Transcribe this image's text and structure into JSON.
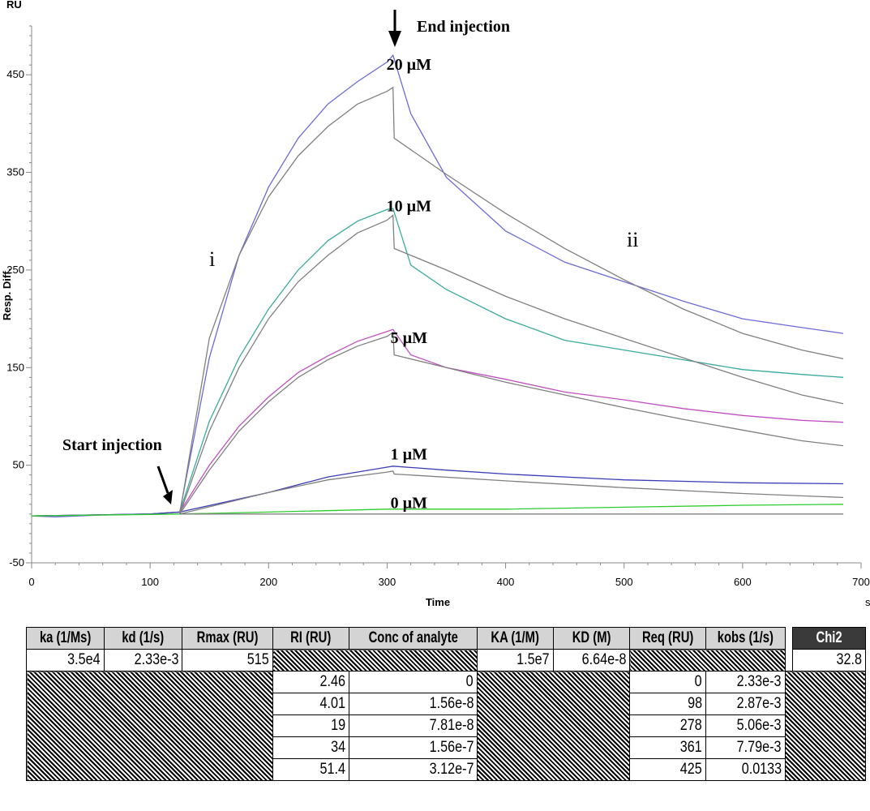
{
  "chart_data": {
    "type": "line",
    "y_unit": "RU",
    "ylabel": "Resp. Diff.",
    "xlabel": "Time",
    "x_unit": "s",
    "xlim": [
      0,
      700
    ],
    "ylim": [
      -50,
      500
    ],
    "x_ticks": [
      0,
      100,
      200,
      300,
      400,
      500,
      600,
      700
    ],
    "y_ticks": [
      -50,
      50,
      150,
      250,
      350,
      450
    ],
    "series": [
      {
        "name": "20 µM",
        "color": "#6b6bd8",
        "x": [
          0,
          20,
          60,
          100,
          125,
          150,
          175,
          200,
          225,
          250,
          275,
          300,
          305,
          320,
          350,
          400,
          450,
          500,
          550,
          600,
          650,
          685
        ],
        "y": [
          -2,
          -3,
          -1,
          0,
          2,
          160,
          265,
          335,
          385,
          420,
          443,
          463,
          470,
          410,
          345,
          290,
          258,
          238,
          218,
          200,
          191,
          185
        ]
      },
      {
        "name": "10 µM",
        "color": "#3aaa9e",
        "x": [
          0,
          100,
          125,
          150,
          175,
          200,
          225,
          250,
          275,
          300,
          305,
          320,
          350,
          400,
          450,
          500,
          550,
          600,
          650,
          685
        ],
        "y": [
          -2,
          0,
          2,
          95,
          160,
          210,
          250,
          280,
          300,
          312,
          313,
          255,
          230,
          200,
          178,
          168,
          158,
          148,
          143,
          140
        ]
      },
      {
        "name": "5 µM",
        "color": "#c24fc2",
        "x": [
          0,
          100,
          125,
          150,
          175,
          200,
          225,
          250,
          275,
          300,
          305,
          320,
          350,
          400,
          450,
          500,
          550,
          600,
          650,
          685
        ],
        "y": [
          -2,
          0,
          2,
          50,
          90,
          120,
          145,
          162,
          177,
          187,
          189,
          163,
          150,
          138,
          125,
          117,
          108,
          101,
          96,
          94
        ]
      },
      {
        "name": "1 µM",
        "color": "#3c3cb4",
        "x": [
          0,
          100,
          125,
          200,
          250,
          300,
          305,
          350,
          400,
          500,
          600,
          685
        ],
        "y": [
          -2,
          0,
          2,
          22,
          38,
          48,
          49,
          45,
          41,
          35,
          32,
          31
        ]
      },
      {
        "name": "0 µM",
        "color": "#2ecc2e",
        "x": [
          0,
          125,
          200,
          300,
          400,
          500,
          600,
          685
        ],
        "y": [
          -2,
          0,
          2,
          5,
          5,
          7,
          9,
          10
        ]
      },
      {
        "name": "fit 20 µM",
        "color": "#808080",
        "x": [
          125,
          150,
          175,
          200,
          225,
          250,
          275,
          300,
          305,
          306,
          350,
          400,
          450,
          500,
          550,
          600,
          650,
          685
        ],
        "y": [
          0,
          180,
          265,
          325,
          367,
          397,
          420,
          433,
          437,
          385,
          348,
          308,
          272,
          240,
          210,
          185,
          168,
          159
        ]
      },
      {
        "name": "fit 10 µM",
        "color": "#808080",
        "x": [
          125,
          150,
          175,
          200,
          225,
          250,
          275,
          300,
          305,
          306,
          350,
          400,
          450,
          500,
          550,
          600,
          650,
          685
        ],
        "y": [
          0,
          85,
          150,
          200,
          238,
          265,
          288,
          301,
          306,
          272,
          250,
          223,
          200,
          180,
          160,
          140,
          122,
          113
        ]
      },
      {
        "name": "fit 5 µM",
        "color": "#808080",
        "x": [
          125,
          150,
          175,
          200,
          225,
          250,
          275,
          300,
          305,
          306,
          350,
          400,
          450,
          500,
          550,
          600,
          650,
          685
        ],
        "y": [
          0,
          45,
          85,
          115,
          140,
          158,
          172,
          182,
          186,
          163,
          150,
          135,
          122,
          109,
          97,
          86,
          75,
          70
        ]
      },
      {
        "name": "fit 1 µM",
        "color": "#808080",
        "x": [
          125,
          200,
          250,
          300,
          305,
          306,
          400,
          500,
          600,
          685
        ],
        "y": [
          0,
          22,
          35,
          43,
          44,
          41,
          34,
          27,
          21,
          17
        ]
      },
      {
        "name": "fit 0 µM",
        "color": "#808080",
        "x": [
          125,
          685
        ],
        "y": [
          0,
          0
        ]
      }
    ],
    "annotations": {
      "concentrations": [
        {
          "text": "20 µM",
          "x": 120,
          "y": 455
        },
        {
          "text": "10 µM",
          "x": 120,
          "y": 310
        },
        {
          "text": "5 µM",
          "x": 120,
          "y": 175
        },
        {
          "text": "1 µM",
          "x": 120,
          "y": 56
        },
        {
          "text": "0 µM",
          "x": 120,
          "y": 6
        }
      ],
      "start_injection": "Start injection",
      "end_injection": "End injection",
      "phase_i": "i",
      "phase_ii": "ii"
    }
  },
  "table": {
    "headers": [
      "ka (1/Ms)",
      "kd (1/s)",
      "Rmax (RU)",
      "RI (RU)",
      "Conc of analyte",
      "KA (1/M)",
      "KD (M)",
      "Req (RU)",
      "kobs (1/s)",
      "Chi2"
    ],
    "fit_row": {
      "ka": "3.5e4",
      "kd": "2.33e-3",
      "rmax": "515",
      "ka_assoc": "1.5e7",
      "kd_dissoc": "6.64e-8",
      "chi2": "32.8"
    },
    "rows": [
      {
        "ri": "2.46",
        "conc": "0",
        "req": "0",
        "kobs": "2.33e-3"
      },
      {
        "ri": "4.01",
        "conc": "1.56e-8",
        "req": "98",
        "kobs": "2.87e-3"
      },
      {
        "ri": "19",
        "conc": "7.81e-8",
        "req": "278",
        "kobs": "5.06e-3"
      },
      {
        "ri": "34",
        "conc": "1.56e-7",
        "req": "361",
        "kobs": "7.79e-3"
      },
      {
        "ri": "51.4",
        "conc": "3.12e-7",
        "req": "425",
        "kobs": "0.0133"
      }
    ]
  }
}
